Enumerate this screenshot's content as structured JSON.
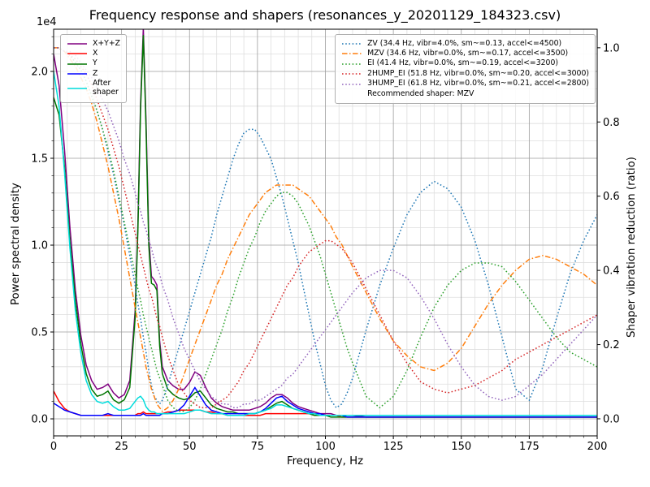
{
  "chart_data": {
    "type": "line",
    "title": "Frequency response and shapers (resonances_y_20201129_184323.csv)",
    "xlabel": "Frequency, Hz",
    "ylabel_left": "Power spectral density",
    "ylabel_right": "Shaper vibration reduction (ratio)",
    "offset_text": "1e4",
    "legend_note": "Recommended shaper: MZV",
    "grid": "major-and-minor",
    "axes": {
      "xlim": [
        0,
        200
      ],
      "ylim_left": [
        -0.098,
        2.243
      ],
      "ylim_right": [
        -0.046,
        1.05
      ],
      "y_left_unit": "1e4"
    },
    "xticks": {
      "values": [
        0,
        25,
        50,
        75,
        100,
        125,
        150,
        175,
        200
      ],
      "labels": [
        "0",
        "25",
        "50",
        "75",
        "100",
        "125",
        "150",
        "175",
        "200"
      ]
    },
    "yticks_left": {
      "values": [
        0.0,
        0.5,
        1.0,
        1.5,
        2.0
      ],
      "labels": [
        "0.0",
        "0.5",
        "1.0",
        "1.5",
        "2.0"
      ]
    },
    "yticks_right": {
      "values": [
        0.0,
        0.2,
        0.4,
        0.6,
        0.8,
        1.0
      ],
      "labels": [
        "0.0",
        "0.2",
        "0.4",
        "0.6",
        "0.8",
        "1.0"
      ]
    },
    "x": [
      0,
      2,
      4,
      6,
      8,
      10,
      12,
      14,
      16,
      18,
      20,
      22,
      24,
      26,
      28,
      30,
      31,
      32,
      33,
      34,
      35,
      36,
      37,
      38,
      39,
      40,
      42,
      44,
      46,
      48,
      50,
      52,
      54,
      56,
      58,
      60,
      62,
      64,
      66,
      68,
      70,
      72,
      74,
      76,
      78,
      80,
      82,
      84,
      86,
      88,
      90,
      92,
      94,
      96,
      98,
      100,
      102,
      104,
      106,
      108,
      110,
      115,
      120,
      125,
      130,
      135,
      140,
      145,
      150,
      155,
      160,
      165,
      170,
      175,
      180,
      185,
      190,
      195,
      200
    ],
    "series": [
      {
        "name": "psd_xyz",
        "label": "X+Y+Z",
        "axis": "left",
        "color": "#800080",
        "style": "solid",
        "values": [
          2.1,
          1.92,
          1.55,
          1.1,
          0.74,
          0.48,
          0.31,
          0.22,
          0.17,
          0.18,
          0.2,
          0.15,
          0.12,
          0.14,
          0.22,
          0.62,
          1.12,
          1.82,
          2.25,
          1.72,
          1.05,
          0.82,
          0.8,
          0.77,
          0.45,
          0.3,
          0.22,
          0.19,
          0.17,
          0.17,
          0.21,
          0.27,
          0.25,
          0.18,
          0.12,
          0.09,
          0.07,
          0.06,
          0.05,
          0.05,
          0.05,
          0.05,
          0.06,
          0.07,
          0.09,
          0.12,
          0.14,
          0.14,
          0.12,
          0.09,
          0.07,
          0.06,
          0.05,
          0.04,
          0.03,
          0.03,
          0.03,
          0.02,
          0.02,
          0.02,
          0.02,
          0.01,
          0.01,
          0.01,
          0.01,
          0.01,
          0.01,
          0.01,
          0.01,
          0.01,
          0.01,
          0.01,
          0.01,
          0.01,
          0.01,
          0.01,
          0.01,
          0.01,
          0.01
        ]
      },
      {
        "name": "psd_x",
        "label": "X",
        "axis": "left",
        "color": "#ff0000",
        "style": "solid",
        "values": [
          0.16,
          0.1,
          0.06,
          0.04,
          0.03,
          0.02,
          0.02,
          0.02,
          0.02,
          0.02,
          0.02,
          0.02,
          0.02,
          0.02,
          0.02,
          0.02,
          0.03,
          0.03,
          0.04,
          0.03,
          0.03,
          0.03,
          0.03,
          0.03,
          0.03,
          0.03,
          0.04,
          0.04,
          0.05,
          0.05,
          0.05,
          0.05,
          0.05,
          0.04,
          0.04,
          0.03,
          0.03,
          0.02,
          0.02,
          0.02,
          0.02,
          0.02,
          0.02,
          0.02,
          0.03,
          0.03,
          0.03,
          0.03,
          0.03,
          0.03,
          0.03,
          0.03,
          0.03,
          0.02,
          0.02,
          0.02,
          0.02,
          0.02,
          0.01,
          0.01,
          0.01,
          0.01,
          0.01,
          0.01,
          0.01,
          0.01,
          0.01,
          0.01,
          0.01,
          0.01,
          0.01,
          0.01,
          0.01,
          0.01,
          0.01,
          0.01,
          0.01,
          0.01,
          0.01
        ]
      },
      {
        "name": "psd_y",
        "label": "Y",
        "axis": "left",
        "color": "#007500",
        "style": "solid",
        "values": [
          1.85,
          1.75,
          1.45,
          1.02,
          0.68,
          0.43,
          0.26,
          0.17,
          0.13,
          0.14,
          0.16,
          0.11,
          0.09,
          0.11,
          0.18,
          0.58,
          1.08,
          1.78,
          2.21,
          1.68,
          1.0,
          0.78,
          0.77,
          0.74,
          0.42,
          0.26,
          0.17,
          0.14,
          0.12,
          0.11,
          0.12,
          0.15,
          0.16,
          0.12,
          0.08,
          0.06,
          0.05,
          0.04,
          0.04,
          0.03,
          0.03,
          0.03,
          0.03,
          0.04,
          0.05,
          0.07,
          0.09,
          0.1,
          0.08,
          0.06,
          0.05,
          0.04,
          0.03,
          0.02,
          0.02,
          0.02,
          0.01,
          0.01,
          0.01,
          0.01,
          0.01,
          0.01,
          0.01,
          0.01,
          0.01,
          0.01,
          0.01,
          0.01,
          0.01,
          0.01,
          0.01,
          0.01,
          0.01,
          0.01,
          0.01,
          0.01,
          0.01,
          0.01,
          0.01
        ]
      },
      {
        "name": "psd_z",
        "label": "Z",
        "axis": "left",
        "color": "#0000ff",
        "style": "solid",
        "values": [
          0.09,
          0.07,
          0.05,
          0.04,
          0.03,
          0.02,
          0.02,
          0.02,
          0.02,
          0.02,
          0.03,
          0.02,
          0.02,
          0.02,
          0.02,
          0.02,
          0.02,
          0.02,
          0.03,
          0.02,
          0.02,
          0.02,
          0.02,
          0.02,
          0.02,
          0.03,
          0.03,
          0.04,
          0.05,
          0.08,
          0.13,
          0.18,
          0.13,
          0.08,
          0.05,
          0.04,
          0.03,
          0.03,
          0.03,
          0.03,
          0.03,
          0.03,
          0.03,
          0.04,
          0.06,
          0.09,
          0.12,
          0.13,
          0.1,
          0.08,
          0.06,
          0.05,
          0.04,
          0.03,
          0.03,
          0.02,
          0.02,
          0.02,
          0.02,
          0.01,
          0.01,
          0.01,
          0.01,
          0.01,
          0.01,
          0.01,
          0.01,
          0.01,
          0.01,
          0.01,
          0.01,
          0.01,
          0.01,
          0.01,
          0.01,
          0.01,
          0.01,
          0.01,
          0.01
        ]
      },
      {
        "name": "psd_after_shaper",
        "label": "After\nshaper",
        "axis": "left",
        "color": "#00dcdc",
        "style": "solid",
        "values": [
          2.0,
          1.8,
          1.42,
          0.98,
          0.62,
          0.38,
          0.22,
          0.14,
          0.1,
          0.09,
          0.1,
          0.07,
          0.05,
          0.05,
          0.06,
          0.1,
          0.12,
          0.13,
          0.11,
          0.07,
          0.05,
          0.04,
          0.04,
          0.03,
          0.03,
          0.03,
          0.03,
          0.03,
          0.03,
          0.03,
          0.04,
          0.05,
          0.05,
          0.04,
          0.03,
          0.03,
          0.03,
          0.02,
          0.02,
          0.02,
          0.02,
          0.03,
          0.03,
          0.04,
          0.05,
          0.06,
          0.08,
          0.08,
          0.07,
          0.06,
          0.05,
          0.04,
          0.03,
          0.03,
          0.02,
          0.02,
          0.02,
          0.02,
          0.02,
          0.02,
          0.02,
          0.02,
          0.02,
          0.02,
          0.02,
          0.02,
          0.02,
          0.02,
          0.02,
          0.02,
          0.02,
          0.02,
          0.02,
          0.02,
          0.02,
          0.02,
          0.02,
          0.02,
          0.02
        ]
      },
      {
        "name": "shaper_zv",
        "label": "ZV (34.4 Hz, vibr=4.0%, sm~=0.13, accel<=4500)",
        "axis": "right",
        "color": "#1f77b4",
        "style": "dotted",
        "values": [
          1.0,
          1.0,
          0.99,
          0.98,
          0.96,
          0.94,
          0.91,
          0.87,
          0.83,
          0.78,
          0.72,
          0.66,
          0.59,
          0.52,
          0.44,
          0.36,
          0.31,
          0.27,
          0.22,
          0.18,
          0.13,
          0.09,
          0.06,
          0.05,
          0.04,
          0.05,
          0.09,
          0.14,
          0.19,
          0.24,
          0.29,
          0.34,
          0.39,
          0.44,
          0.49,
          0.55,
          0.6,
          0.65,
          0.7,
          0.74,
          0.77,
          0.78,
          0.78,
          0.76,
          0.73,
          0.7,
          0.65,
          0.6,
          0.54,
          0.48,
          0.42,
          0.35,
          0.28,
          0.21,
          0.15,
          0.09,
          0.05,
          0.03,
          0.04,
          0.07,
          0.11,
          0.24,
          0.36,
          0.46,
          0.55,
          0.61,
          0.64,
          0.62,
          0.57,
          0.48,
          0.36,
          0.22,
          0.08,
          0.05,
          0.14,
          0.27,
          0.39,
          0.48,
          0.55
        ]
      },
      {
        "name": "shaper_mzv",
        "label": "MZV (34.6 Hz, vibr=0.0%, sm~=0.17, accel<=3500)",
        "axis": "right",
        "color": "#ff7f0e",
        "style": "dashdot",
        "values": [
          1.0,
          1.0,
          0.99,
          0.97,
          0.95,
          0.92,
          0.89,
          0.85,
          0.8,
          0.74,
          0.68,
          0.61,
          0.54,
          0.46,
          0.38,
          0.3,
          0.26,
          0.22,
          0.18,
          0.14,
          0.11,
          0.08,
          0.06,
          0.04,
          0.03,
          0.02,
          0.03,
          0.05,
          0.08,
          0.12,
          0.16,
          0.2,
          0.24,
          0.28,
          0.32,
          0.36,
          0.39,
          0.43,
          0.46,
          0.49,
          0.52,
          0.55,
          0.57,
          0.59,
          0.61,
          0.62,
          0.63,
          0.63,
          0.63,
          0.63,
          0.62,
          0.61,
          0.6,
          0.58,
          0.56,
          0.54,
          0.52,
          0.49,
          0.47,
          0.44,
          0.41,
          0.34,
          0.27,
          0.21,
          0.17,
          0.14,
          0.13,
          0.15,
          0.19,
          0.25,
          0.31,
          0.36,
          0.4,
          0.43,
          0.44,
          0.43,
          0.41,
          0.39,
          0.36
        ]
      },
      {
        "name": "shaper_ei",
        "label": "EI (41.4 Hz, vibr=0.0%, sm~=0.19, accel<=3200)",
        "axis": "right",
        "color": "#2ca02c",
        "style": "dotted",
        "values": [
          1.0,
          1.0,
          0.99,
          0.98,
          0.96,
          0.94,
          0.91,
          0.87,
          0.83,
          0.78,
          0.73,
          0.67,
          0.6,
          0.53,
          0.46,
          0.39,
          0.35,
          0.32,
          0.28,
          0.25,
          0.22,
          0.19,
          0.16,
          0.13,
          0.11,
          0.09,
          0.05,
          0.03,
          0.02,
          0.02,
          0.03,
          0.05,
          0.08,
          0.12,
          0.16,
          0.2,
          0.24,
          0.29,
          0.33,
          0.38,
          0.42,
          0.46,
          0.49,
          0.53,
          0.56,
          0.58,
          0.6,
          0.61,
          0.61,
          0.6,
          0.58,
          0.55,
          0.52,
          0.48,
          0.44,
          0.39,
          0.34,
          0.29,
          0.24,
          0.19,
          0.15,
          0.06,
          0.03,
          0.06,
          0.13,
          0.22,
          0.3,
          0.36,
          0.4,
          0.42,
          0.42,
          0.41,
          0.37,
          0.32,
          0.27,
          0.22,
          0.18,
          0.16,
          0.14
        ]
      },
      {
        "name": "shaper_2hump_ei",
        "label": "2HUMP_EI (51.8 Hz, vibr=0.0%, sm~=0.20, accel<=3000)",
        "axis": "right",
        "color": "#d62728",
        "style": "dotted",
        "values": [
          1.0,
          1.0,
          0.99,
          0.98,
          0.97,
          0.95,
          0.93,
          0.9,
          0.86,
          0.82,
          0.78,
          0.73,
          0.68,
          0.62,
          0.56,
          0.5,
          0.47,
          0.44,
          0.41,
          0.38,
          0.35,
          0.33,
          0.3,
          0.27,
          0.25,
          0.22,
          0.17,
          0.13,
          0.09,
          0.07,
          0.05,
          0.04,
          0.03,
          0.03,
          0.03,
          0.04,
          0.05,
          0.06,
          0.08,
          0.1,
          0.13,
          0.15,
          0.18,
          0.21,
          0.24,
          0.27,
          0.3,
          0.33,
          0.36,
          0.38,
          0.41,
          0.43,
          0.45,
          0.46,
          0.47,
          0.48,
          0.48,
          0.47,
          0.46,
          0.44,
          0.42,
          0.35,
          0.28,
          0.21,
          0.15,
          0.1,
          0.08,
          0.07,
          0.08,
          0.09,
          0.11,
          0.13,
          0.16,
          0.18,
          0.2,
          0.22,
          0.24,
          0.26,
          0.28
        ]
      },
      {
        "name": "shaper_3hump_ei",
        "label": "3HUMP_EI (61.8 Hz, vibr=0.0%, sm~=0.21, accel<=2800)",
        "axis": "right",
        "color": "#9467bd",
        "style": "dotted",
        "values": [
          1.0,
          1.0,
          0.99,
          0.99,
          0.98,
          0.96,
          0.94,
          0.92,
          0.89,
          0.86,
          0.83,
          0.79,
          0.75,
          0.7,
          0.66,
          0.61,
          0.58,
          0.56,
          0.53,
          0.51,
          0.48,
          0.46,
          0.43,
          0.41,
          0.39,
          0.36,
          0.32,
          0.27,
          0.23,
          0.19,
          0.16,
          0.13,
          0.1,
          0.08,
          0.06,
          0.05,
          0.04,
          0.04,
          0.03,
          0.03,
          0.04,
          0.04,
          0.05,
          0.05,
          0.06,
          0.07,
          0.08,
          0.09,
          0.11,
          0.12,
          0.14,
          0.16,
          0.18,
          0.2,
          0.22,
          0.24,
          0.26,
          0.28,
          0.3,
          0.32,
          0.34,
          0.38,
          0.4,
          0.4,
          0.38,
          0.33,
          0.27,
          0.2,
          0.14,
          0.09,
          0.06,
          0.05,
          0.06,
          0.09,
          0.12,
          0.16,
          0.2,
          0.24,
          0.28
        ]
      }
    ]
  }
}
